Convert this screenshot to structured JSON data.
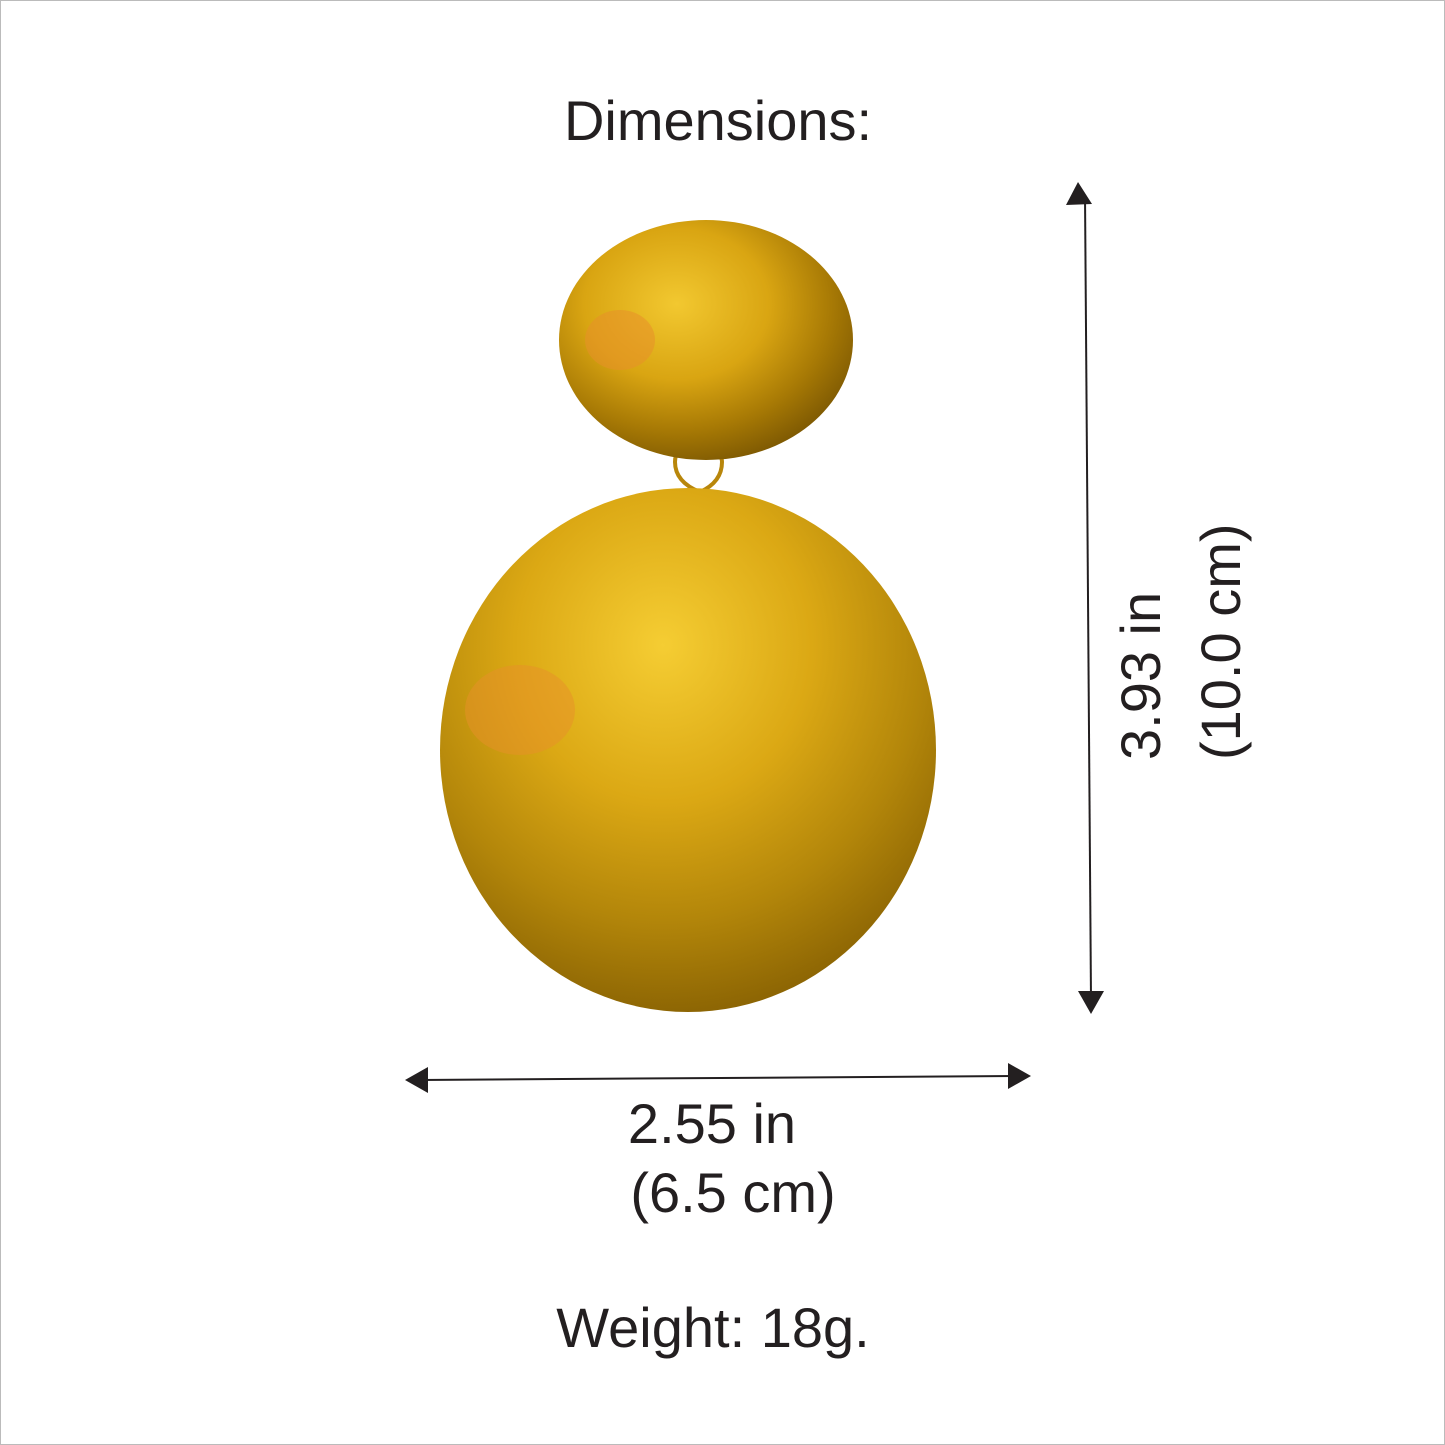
{
  "title": "Dimensions:",
  "height": {
    "imperial": "3.93 in",
    "metric": "(10.0 cm)"
  },
  "width": {
    "imperial": "2.55 in",
    "metric": "(6.5 cm)"
  },
  "weight": "Weight: 18g."
}
